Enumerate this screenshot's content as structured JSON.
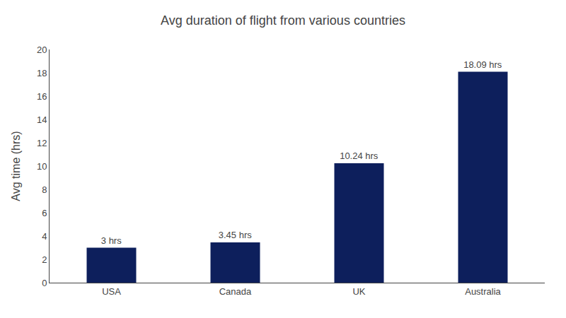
{
  "chart_data": {
    "type": "bar",
    "title": "Avg duration of flight from various countries",
    "ylabel": "Avg time (hrs)",
    "categories": [
      "USA",
      "Canada",
      "UK",
      "Australia"
    ],
    "values": [
      3,
      3.45,
      10.24,
      18.09
    ],
    "value_labels": [
      "3 hrs",
      "3.45 hrs",
      "10.24 hrs",
      "18.09 hrs"
    ],
    "data_labels": true,
    "color": "#0d1f5c",
    "ylim": [
      0,
      20
    ],
    "yticks": [
      0,
      2,
      4,
      6,
      8,
      10,
      12,
      14,
      16,
      18,
      20
    ],
    "grid": false
  }
}
